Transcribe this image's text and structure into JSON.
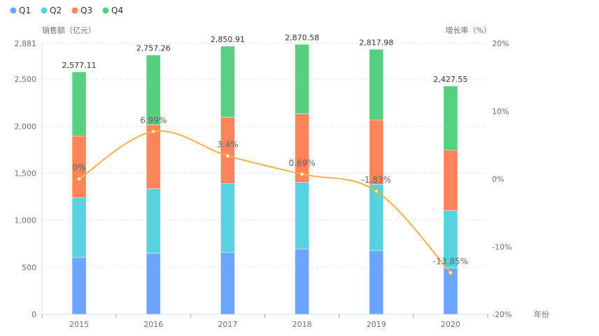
{
  "chart_data": {
    "type": "bar",
    "stacked": true,
    "categories": [
      "2015",
      "2016",
      "2017",
      "2018",
      "2019",
      "2020"
    ],
    "series": [
      {
        "name": "Q1",
        "color": "#6ba5ff",
        "values": [
          605,
          649,
          657,
          694,
          679,
          493
        ]
      },
      {
        "name": "Q2",
        "color": "#58d0de",
        "values": [
          634,
          687,
          731,
          709,
          702,
          611
        ]
      },
      {
        "name": "Q3",
        "color": "#ff8459",
        "values": [
          657,
          679,
          709,
          731,
          686,
          642
        ]
      },
      {
        "name": "Q4",
        "color": "#58cf80",
        "values": [
          681.11,
          742.26,
          753.91,
          736.58,
          750.98,
          681.55
        ]
      }
    ],
    "totals": [
      2577.11,
      2757.26,
      2850.91,
      2870.58,
      2817.98,
      2427.55
    ],
    "total_labels": [
      "2,577.11",
      "2,757.26",
      "2,850.91",
      "2,870.58",
      "2,817.98",
      "2,427.55"
    ],
    "line_series": {
      "name": "增长率",
      "color": "#f5b04f",
      "values": [
        0,
        6.99,
        3.4,
        0.69,
        -1.83,
        -13.85
      ],
      "labels": [
        "0%",
        "6.99%",
        "3.4%",
        "0.69%",
        "-1.83%",
        "-13.85%"
      ]
    },
    "xlabel": "年份",
    "ylabel": "销售额（亿元）",
    "y2label": "增长率（%）",
    "ylim": [
      0,
      2881
    ],
    "y_ticks": [
      0,
      500,
      1000,
      1500,
      2000,
      2500,
      2881
    ],
    "y_tick_labels": [
      "0",
      "500",
      "1,000",
      "1,500",
      "2,000",
      "2,500",
      "2,881"
    ],
    "y2lim": [
      -20,
      20
    ],
    "y2_ticks": [
      -20,
      -10,
      0,
      10,
      20
    ],
    "y2_tick_labels": [
      "-20%",
      "-10%",
      "0%",
      "10%",
      "20%"
    ],
    "grid": true,
    "legend_position": "top-left"
  }
}
